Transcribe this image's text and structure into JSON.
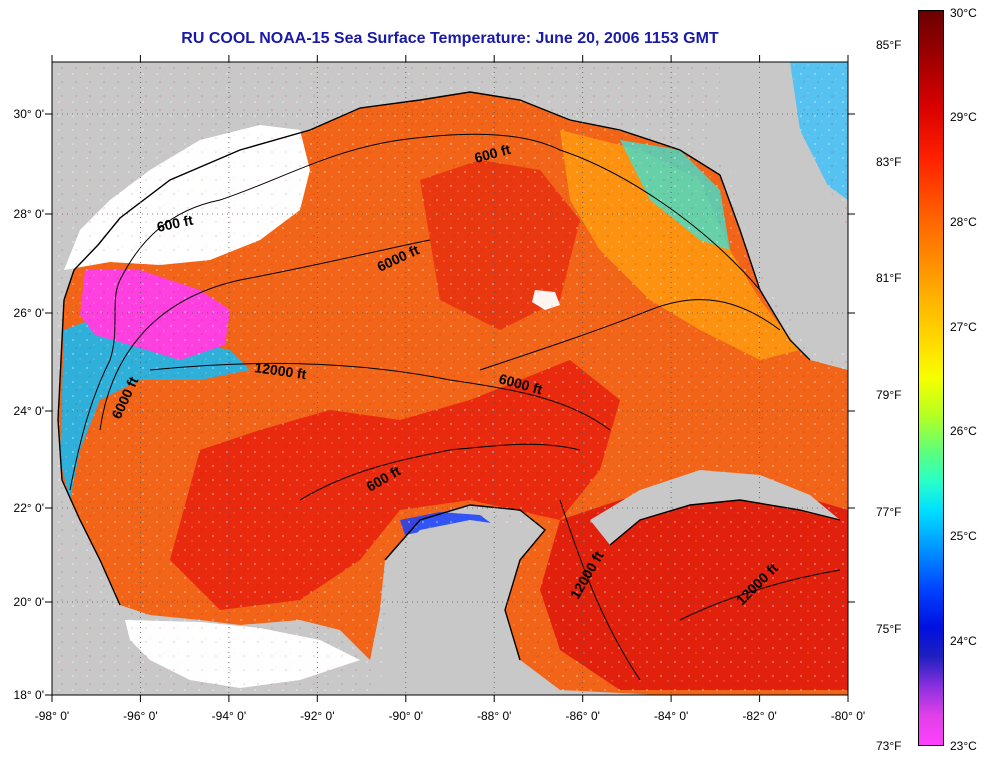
{
  "title": "RU COOL  NOAA-15  Sea Surface Temperature:  June 20, 2006 1153 GMT",
  "axes": {
    "lon_labels": [
      "-98° 0'",
      "-96° 0'",
      "-94° 0'",
      "-92° 0'",
      "-90° 0'",
      "-88° 0'",
      "-86° 0'",
      "-84° 0'",
      "-82° 0'",
      "-80° 0'"
    ],
    "lat_labels": [
      "30° 0'",
      "28° 0'",
      "26° 0'",
      "24° 0'",
      "22° 0'",
      "20° 0'",
      "18° 0'"
    ]
  },
  "contour_labels": [
    {
      "text": "600 ft"
    },
    {
      "text": "600 ft"
    },
    {
      "text": "6000 ft"
    },
    {
      "text": "12000 ft"
    },
    {
      "text": "6000 ft"
    },
    {
      "text": "6000 ft"
    },
    {
      "text": "600 ft"
    },
    {
      "text": "12000 ft"
    },
    {
      "text": "12000 ft"
    }
  ],
  "colorbar": {
    "fahrenheit": [
      "85°F",
      "83°F",
      "81°F",
      "79°F",
      "77°F",
      "75°F",
      "73°F"
    ],
    "celsius": [
      "30°C",
      "29°C",
      "28°C",
      "27°C",
      "26°C",
      "25°C",
      "24°C",
      "23°C"
    ]
  },
  "colors": {
    "land": "#c8c8c8",
    "cloud_mask": "#ffffff",
    "title": "#1a1aa8",
    "warm_max": "#6a0000",
    "cool_min": "#ff40ff"
  }
}
